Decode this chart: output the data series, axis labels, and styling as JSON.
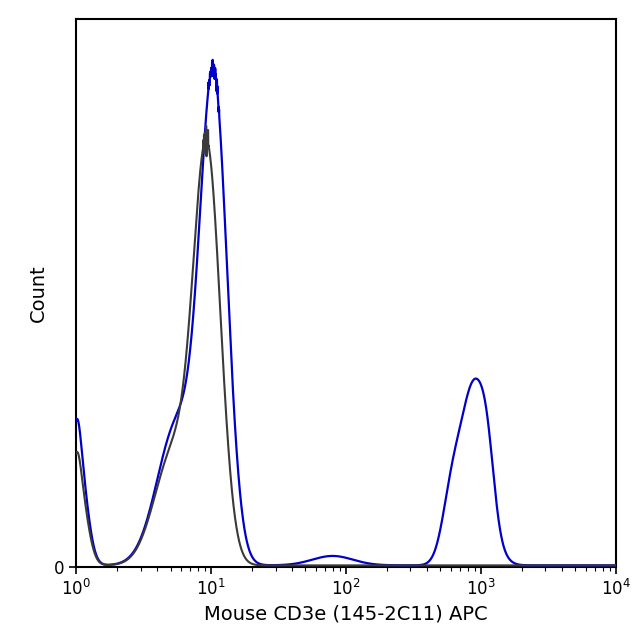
{
  "title": "",
  "xlabel": "Mouse CD3e (145-2C11) APC",
  "ylabel": "Count",
  "xlabel_fontsize": 14,
  "ylabel_fontsize": 14,
  "background_color": "#ffffff",
  "plot_bg_color": "#ffffff",
  "xlim": [
    1.0,
    10000.0
  ],
  "ylim_min": 0,
  "blue_color": "#0000cc",
  "gray_color": "#3a3a3a",
  "blue_lw": 1.6,
  "gray_lw": 1.5,
  "figwidth": 6.35,
  "figheight": 6.44,
  "dpi": 100
}
